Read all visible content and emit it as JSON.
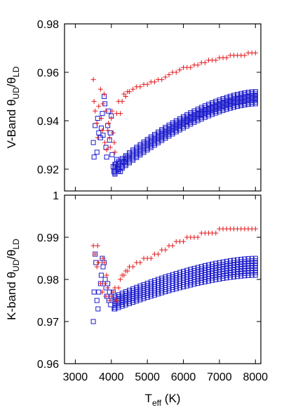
{
  "chart_data": [
    {
      "type": "scatter",
      "ylabel": {
        "main": "V-Band θ",
        "sub1": "UD",
        "mid": "/θ",
        "sub2": "LD"
      },
      "xlim": [
        2700,
        8150
      ],
      "ylim": [
        0.911,
        0.98
      ],
      "yticks": [
        {
          "v": 0.92,
          "label": "0.92"
        },
        {
          "v": 0.94,
          "label": "0.94"
        },
        {
          "v": 0.96,
          "label": "0.96"
        },
        {
          "v": 0.98,
          "label": "0.98"
        }
      ],
      "xticks": [
        3000,
        4000,
        5000,
        6000,
        7000,
        8000
      ],
      "series": [
        {
          "marker": "plus",
          "color": "#e41a1c",
          "points": [
            [
              3500,
              0.957
            ],
            [
              3520,
              0.948
            ],
            [
              3550,
              0.944
            ],
            [
              3600,
              0.939
            ],
            [
              3620,
              0.933
            ],
            [
              3650,
              0.946
            ],
            [
              3700,
              0.953
            ],
            [
              3720,
              0.941
            ],
            [
              3750,
              0.936
            ],
            [
              3770,
              0.947
            ],
            [
              3800,
              0.951
            ],
            [
              3820,
              0.931
            ],
            [
              3850,
              0.944
            ],
            [
              3870,
              0.928
            ],
            [
              3900,
              0.936
            ],
            [
              3920,
              0.939
            ],
            [
              3950,
              0.933
            ],
            [
              3970,
              0.929
            ],
            [
              4000,
              0.941
            ],
            [
              4020,
              0.944
            ],
            [
              4050,
              0.935
            ],
            [
              4080,
              0.931
            ],
            [
              4100,
              0.927
            ],
            [
              4150,
              0.943
            ],
            [
              4200,
              0.948
            ],
            [
              4250,
              0.943
            ],
            [
              4300,
              0.948
            ],
            [
              4350,
              0.951
            ],
            [
              4400,
              0.95
            ],
            [
              4450,
              0.952
            ],
            [
              4500,
              0.952
            ],
            [
              4600,
              0.953
            ],
            [
              4700,
              0.954
            ],
            [
              4800,
              0.954
            ],
            [
              4900,
              0.955
            ],
            [
              5000,
              0.955
            ],
            [
              5100,
              0.956
            ],
            [
              5200,
              0.956
            ],
            [
              5300,
              0.957
            ],
            [
              5400,
              0.957
            ],
            [
              5500,
              0.958
            ],
            [
              5600,
              0.959
            ],
            [
              5700,
              0.96
            ],
            [
              5800,
              0.96
            ],
            [
              5900,
              0.961
            ],
            [
              6000,
              0.962
            ],
            [
              6100,
              0.962
            ],
            [
              6200,
              0.962
            ],
            [
              6300,
              0.963
            ],
            [
              6400,
              0.963
            ],
            [
              6500,
              0.964
            ],
            [
              6600,
              0.964
            ],
            [
              6700,
              0.965
            ],
            [
              6800,
              0.965
            ],
            [
              6900,
              0.965
            ],
            [
              7000,
              0.966
            ],
            [
              7100,
              0.966
            ],
            [
              7200,
              0.966
            ],
            [
              7300,
              0.967
            ],
            [
              7400,
              0.967
            ],
            [
              7500,
              0.967
            ],
            [
              7600,
              0.967
            ],
            [
              7700,
              0.967
            ],
            [
              7800,
              0.968
            ],
            [
              7900,
              0.968
            ],
            [
              8000,
              0.968
            ]
          ]
        },
        {
          "marker": "square",
          "color": "#1a1acc",
          "points": [
            [
              3500,
              0.931
            ],
            [
              3520,
              0.925
            ],
            [
              3550,
              0.938
            ],
            [
              3600,
              0.927
            ],
            [
              3620,
              0.941
            ],
            [
              3650,
              0.935
            ],
            [
              3700,
              0.933
            ],
            [
              3720,
              0.937
            ],
            [
              3750,
              0.943
            ],
            [
              3770,
              0.934
            ],
            [
              3800,
              0.95
            ],
            [
              3820,
              0.947
            ],
            [
              3850,
              0.929
            ],
            [
              3870,
              0.925
            ],
            [
              3900,
              0.938
            ],
            [
              3920,
              0.944
            ],
            [
              3950,
              0.932
            ],
            [
              3970,
              0.935
            ],
            [
              4000,
              0.942
            ],
            [
              4020,
              0.926
            ],
            [
              4050,
              0.921
            ],
            [
              4070,
              0.919
            ],
            [
              4100,
              0.918
            ],
            [
              4120,
              0.922
            ],
            [
              4150,
              0.924
            ],
            [
              4180,
              0.921
            ],
            [
              4200,
              0.92
            ],
            [
              4250,
              0.919
            ],
            [
              4300,
              0.921
            ],
            [
              4350,
              0.923
            ],
            [
              4400,
              0.924
            ],
            [
              4450,
              0.925
            ]
          ],
          "band": {
            "x0": 4100,
            "x1": 8000,
            "ylo0": 0.918,
            "yhi0": 0.922,
            "ylo1": 0.947,
            "yhi1": 0.952,
            "rows": 8,
            "xstep": 100
          }
        }
      ]
    },
    {
      "type": "scatter",
      "ylabel": {
        "main": "K-band θ",
        "sub1": "UD",
        "mid": "/θ",
        "sub2": "LD"
      },
      "xlabel": {
        "main": "T",
        "sub": "eff",
        "tail": " (K)"
      },
      "xlim": [
        2700,
        8150
      ],
      "ylim": [
        0.96,
        1.0
      ],
      "yticks": [
        {
          "v": 0.96,
          "label": "0.96"
        },
        {
          "v": 0.97,
          "label": "0.97"
        },
        {
          "v": 0.98,
          "label": "0.98"
        },
        {
          "v": 0.99,
          "label": "0.99"
        },
        {
          "v": 1.0,
          "label": "1"
        }
      ],
      "xticks": [
        3000,
        4000,
        5000,
        6000,
        7000,
        8000
      ],
      "xticklabels": [
        "3000",
        "4000",
        "5000",
        "6000",
        "7000",
        "8000"
      ],
      "series": [
        {
          "marker": "plus",
          "color": "#e41a1c",
          "points": [
            [
              3500,
              0.988
            ],
            [
              3550,
              0.986
            ],
            [
              3600,
              0.983
            ],
            [
              3620,
              0.988
            ],
            [
              3650,
              0.984
            ],
            [
              3700,
              0.979
            ],
            [
              3750,
              0.977
            ],
            [
              3770,
              0.985
            ],
            [
              3800,
              0.984
            ],
            [
              3830,
              0.979
            ],
            [
              3850,
              0.976
            ],
            [
              3870,
              0.981
            ],
            [
              3900,
              0.978
            ],
            [
              3950,
              0.975
            ],
            [
              4000,
              0.976
            ],
            [
              4050,
              0.977
            ],
            [
              4100,
              0.978
            ],
            [
              4150,
              0.975
            ],
            [
              4200,
              0.978
            ],
            [
              4250,
              0.98
            ],
            [
              4300,
              0.981
            ],
            [
              4350,
              0.981
            ],
            [
              4400,
              0.982
            ],
            [
              4450,
              0.982
            ],
            [
              4500,
              0.983
            ],
            [
              4600,
              0.983
            ],
            [
              4700,
              0.984
            ],
            [
              4800,
              0.984
            ],
            [
              4900,
              0.985
            ],
            [
              5000,
              0.985
            ],
            [
              5100,
              0.985
            ],
            [
              5200,
              0.986
            ],
            [
              5300,
              0.986
            ],
            [
              5400,
              0.987
            ],
            [
              5500,
              0.987
            ],
            [
              5600,
              0.988
            ],
            [
              5700,
              0.988
            ],
            [
              5800,
              0.989
            ],
            [
              5900,
              0.989
            ],
            [
              6000,
              0.989
            ],
            [
              6100,
              0.99
            ],
            [
              6200,
              0.99
            ],
            [
              6300,
              0.99
            ],
            [
              6400,
              0.99
            ],
            [
              6500,
              0.991
            ],
            [
              6600,
              0.991
            ],
            [
              6700,
              0.991
            ],
            [
              6800,
              0.991
            ],
            [
              6900,
              0.991
            ],
            [
              7000,
              0.992
            ],
            [
              7100,
              0.992
            ],
            [
              7200,
              0.992
            ],
            [
              7300,
              0.992
            ],
            [
              7400,
              0.992
            ],
            [
              7500,
              0.992
            ],
            [
              7600,
              0.992
            ],
            [
              7700,
              0.992
            ],
            [
              7800,
              0.992
            ],
            [
              7900,
              0.992
            ],
            [
              8000,
              0.992
            ]
          ]
        },
        {
          "marker": "square",
          "color": "#1a1acc",
          "points": [
            [
              3500,
              0.97
            ],
            [
              3520,
              0.977
            ],
            [
              3550,
              0.986
            ],
            [
              3570,
              0.984
            ],
            [
              3600,
              0.975
            ],
            [
              3630,
              0.973
            ],
            [
              3650,
              0.977
            ],
            [
              3700,
              0.979
            ],
            [
              3720,
              0.981
            ],
            [
              3750,
              0.985
            ],
            [
              3770,
              0.983
            ],
            [
              3800,
              0.984
            ],
            [
              3830,
              0.98
            ],
            [
              3850,
              0.978
            ],
            [
              3870,
              0.976
            ],
            [
              3900,
              0.979
            ],
            [
              3930,
              0.975
            ],
            [
              3950,
              0.977
            ],
            [
              3980,
              0.974
            ],
            [
              4000,
              0.976
            ],
            [
              4050,
              0.977
            ],
            [
              4080,
              0.973
            ]
          ],
          "band": {
            "x0": 4100,
            "x1": 8000,
            "ylo0": 0.973,
            "yhi0": 0.976,
            "ylo1": 0.981,
            "yhi1": 0.985,
            "rows": 8,
            "xstep": 100
          }
        }
      ]
    }
  ]
}
